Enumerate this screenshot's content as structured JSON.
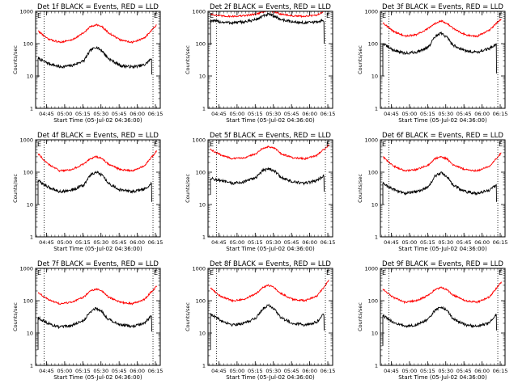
{
  "figure": {
    "x_axis_label": "Start Time (05-Jul-02 04:36:00)",
    "y_axis_label": "Counts/sec",
    "x_tick_labels": [
      "04:45",
      "05:00",
      "05:15",
      "05:30",
      "05:45",
      "06:00",
      "06:15"
    ],
    "y_tick_labels": [
      "1",
      "10",
      "100",
      "1000"
    ],
    "marker_left": "E",
    "marker_right": "E",
    "colors": {
      "events": "#000000",
      "lld": "#ff0000",
      "axes": "#000000",
      "background": "#ffffff"
    }
  },
  "chart_data": [
    {
      "type": "line",
      "title": "Det 1f BLACK = Events, RED = LLD",
      "xlabel": "Start Time (05-Jul-02 04:36:00)",
      "ylabel": "Counts/sec",
      "x_unit": "minutes after 04:36",
      "xlim": [
        0,
        103
      ],
      "ylim": [
        1,
        1000
      ],
      "yscale": "log",
      "vlines": [
        7,
        97
      ],
      "series": [
        {
          "name": "Events",
          "color": "#000000",
          "start_drop": 9,
          "end_drop": 11,
          "x": [
            2,
            10,
            20,
            30,
            40,
            45,
            50,
            55,
            60,
            70,
            80,
            90,
            96
          ],
          "y": [
            35,
            25,
            19,
            21,
            30,
            60,
            80,
            60,
            35,
            21,
            19,
            22,
            35
          ]
        },
        {
          "name": "LLD",
          "color": "#ff0000",
          "x": [
            2,
            10,
            20,
            30,
            40,
            45,
            50,
            55,
            60,
            70,
            80,
            90,
            100
          ],
          "y": [
            250,
            140,
            110,
            130,
            220,
            330,
            390,
            330,
            220,
            130,
            110,
            150,
            380
          ]
        }
      ]
    },
    {
      "type": "line",
      "title": "Det 2f BLACK = Events, RED = LLD",
      "xlabel": "Start Time (05-Jul-02 04:36:00)",
      "ylabel": "Counts/sec",
      "x_unit": "minutes after 04:36",
      "xlim": [
        0,
        103
      ],
      "ylim": [
        1,
        1000
      ],
      "yscale": "log",
      "vlines": [
        7,
        97
      ],
      "series": [
        {
          "name": "Events",
          "color": "#000000",
          "start_drop": 90,
          "end_drop": 100,
          "x": [
            2,
            10,
            20,
            30,
            40,
            45,
            50,
            55,
            60,
            70,
            80,
            90,
            96
          ],
          "y": [
            520,
            470,
            440,
            470,
            560,
            700,
            800,
            700,
            560,
            470,
            440,
            470,
            520
          ]
        },
        {
          "name": "LLD",
          "color": "#ff0000",
          "x": [
            2,
            10,
            20,
            30,
            40,
            45,
            50,
            55,
            60,
            70,
            80,
            90,
            100
          ],
          "y": [
            820,
            720,
            700,
            730,
            830,
            950,
            1050,
            950,
            830,
            720,
            700,
            760,
            1250
          ]
        }
      ]
    },
    {
      "type": "line",
      "title": "Det 3f BLACK = Events, RED = LLD",
      "xlabel": "Start Time (05-Jul-02 04:36:00)",
      "ylabel": "Counts/sec",
      "x_unit": "minutes after 04:36",
      "xlim": [
        0,
        103
      ],
      "ylim": [
        1,
        1000
      ],
      "yscale": "log",
      "vlines": [
        7,
        97
      ],
      "series": [
        {
          "name": "Events",
          "color": "#000000",
          "start_drop": 10,
          "end_drop": 12,
          "x": [
            2,
            10,
            20,
            30,
            40,
            45,
            50,
            55,
            60,
            70,
            80,
            90,
            96
          ],
          "y": [
            100,
            65,
            50,
            55,
            80,
            160,
            210,
            160,
            90,
            60,
            55,
            70,
            100
          ]
        },
        {
          "name": "LLD",
          "color": "#ff0000",
          "x": [
            2,
            10,
            20,
            30,
            40,
            45,
            50,
            55,
            60,
            70,
            80,
            90,
            100
          ],
          "y": [
            450,
            250,
            170,
            190,
            300,
            420,
            520,
            420,
            300,
            190,
            170,
            260,
            600
          ]
        }
      ]
    },
    {
      "type": "line",
      "title": "Det 4f BLACK = Events, RED = LLD",
      "xlabel": "Start Time (05-Jul-02 04:36:00)",
      "ylabel": "Counts/sec",
      "x_unit": "minutes after 04:36",
      "xlim": [
        0,
        103
      ],
      "ylim": [
        1,
        1000
      ],
      "yscale": "log",
      "vlines": [
        7,
        97
      ],
      "series": [
        {
          "name": "Events",
          "color": "#000000",
          "start_drop": 10,
          "end_drop": 12,
          "x": [
            2,
            10,
            20,
            30,
            40,
            45,
            50,
            55,
            60,
            70,
            80,
            90,
            96
          ],
          "y": [
            55,
            35,
            25,
            28,
            40,
            80,
            100,
            80,
            45,
            28,
            25,
            30,
            45
          ]
        },
        {
          "name": "LLD",
          "color": "#ff0000",
          "x": [
            2,
            10,
            20,
            30,
            40,
            45,
            50,
            55,
            60,
            70,
            80,
            90,
            100
          ],
          "y": [
            380,
            180,
            110,
            120,
            180,
            260,
            300,
            260,
            180,
            120,
            110,
            160,
            450
          ]
        }
      ]
    },
    {
      "type": "line",
      "title": "Det 5f BLACK = Events, RED = LLD",
      "xlabel": "Start Time (05-Jul-02 04:36:00)",
      "ylabel": "Counts/sec",
      "x_unit": "minutes after 04:36",
      "xlim": [
        0,
        103
      ],
      "ylim": [
        1,
        1000
      ],
      "yscale": "log",
      "vlines": [
        7,
        97
      ],
      "series": [
        {
          "name": "Events",
          "color": "#000000",
          "start_drop": 20,
          "end_drop": 25,
          "x": [
            2,
            10,
            20,
            30,
            40,
            45,
            50,
            55,
            60,
            70,
            80,
            90,
            96
          ],
          "y": [
            65,
            55,
            45,
            50,
            70,
            110,
            130,
            110,
            70,
            50,
            45,
            55,
            80
          ]
        },
        {
          "name": "LLD",
          "color": "#ff0000",
          "x": [
            2,
            10,
            20,
            30,
            40,
            45,
            50,
            55,
            60,
            70,
            80,
            90,
            100
          ],
          "y": [
            500,
            350,
            260,
            280,
            380,
            550,
            620,
            550,
            380,
            280,
            260,
            330,
            700
          ]
        }
      ]
    },
    {
      "type": "line",
      "title": "Det 6f BLACK = Events, RED = LLD",
      "xlabel": "Start Time (05-Jul-02 04:36:00)",
      "ylabel": "Counts/sec",
      "x_unit": "minutes after 04:36",
      "xlim": [
        0,
        103
      ],
      "ylim": [
        1,
        1000
      ],
      "yscale": "log",
      "vlines": [
        7,
        97
      ],
      "series": [
        {
          "name": "Events",
          "color": "#000000",
          "start_drop": 10,
          "end_drop": 12,
          "x": [
            2,
            10,
            20,
            30,
            40,
            45,
            50,
            55,
            60,
            70,
            80,
            90,
            96
          ],
          "y": [
            45,
            30,
            22,
            25,
            35,
            75,
            95,
            75,
            40,
            25,
            22,
            28,
            40
          ]
        },
        {
          "name": "LLD",
          "color": "#ff0000",
          "x": [
            2,
            10,
            20,
            30,
            40,
            45,
            50,
            55,
            60,
            70,
            80,
            90,
            100
          ],
          "y": [
            300,
            160,
            110,
            120,
            170,
            260,
            300,
            260,
            170,
            120,
            110,
            150,
            400
          ]
        }
      ]
    },
    {
      "type": "line",
      "title": "Det 7f BLACK = Events, RED = LLD",
      "xlabel": "Start Time (05-Jul-02 04:36:00)",
      "ylabel": "Counts/sec",
      "x_unit": "minutes after 04:36",
      "xlim": [
        0,
        103
      ],
      "ylim": [
        1,
        1000
      ],
      "yscale": "log",
      "vlines": [
        7,
        97
      ],
      "series": [
        {
          "name": "Events",
          "color": "#000000",
          "start_drop": 3,
          "end_drop": 11,
          "x": [
            2,
            10,
            20,
            30,
            40,
            45,
            50,
            55,
            60,
            70,
            80,
            90,
            96
          ],
          "y": [
            30,
            20,
            15,
            17,
            25,
            45,
            60,
            45,
            27,
            18,
            16,
            20,
            35
          ]
        },
        {
          "name": "LLD",
          "color": "#ff0000",
          "x": [
            2,
            10,
            20,
            30,
            40,
            45,
            50,
            55,
            60,
            70,
            80,
            90,
            100
          ],
          "y": [
            180,
            110,
            80,
            90,
            130,
            200,
            230,
            200,
            130,
            90,
            80,
            110,
            280
          ]
        }
      ]
    },
    {
      "type": "line",
      "title": "Det 8f BLACK = Events, RED = LLD",
      "xlabel": "Start Time (05-Jul-02 04:36:00)",
      "ylabel": "Counts/sec",
      "x_unit": "minutes after 04:36",
      "xlim": [
        0,
        103
      ],
      "ylim": [
        1,
        1000
      ],
      "yscale": "log",
      "vlines": [
        7,
        97
      ],
      "series": [
        {
          "name": "Events",
          "color": "#000000",
          "start_drop": 3,
          "end_drop": 12,
          "x": [
            2,
            10,
            20,
            30,
            40,
            45,
            50,
            55,
            60,
            70,
            80,
            90,
            96
          ],
          "y": [
            40,
            25,
            18,
            20,
            30,
            55,
            75,
            55,
            30,
            20,
            18,
            22,
            40
          ]
        },
        {
          "name": "LLD",
          "color": "#ff0000",
          "x": [
            2,
            10,
            20,
            30,
            40,
            45,
            50,
            55,
            60,
            70,
            80,
            90,
            100
          ],
          "y": [
            250,
            140,
            100,
            110,
            170,
            250,
            300,
            250,
            170,
            110,
            100,
            140,
            420
          ]
        }
      ]
    },
    {
      "type": "line",
      "title": "Det 9f BLACK = Events, RED = LLD",
      "xlabel": "Start Time (05-Jul-02 04:36:00)",
      "ylabel": "Counts/sec",
      "x_unit": "minutes after 04:36",
      "xlim": [
        0,
        103
      ],
      "ylim": [
        1,
        1000
      ],
      "yscale": "log",
      "vlines": [
        7,
        97
      ],
      "series": [
        {
          "name": "Events",
          "color": "#000000",
          "start_drop": 4,
          "end_drop": 12,
          "x": [
            2,
            10,
            20,
            30,
            40,
            45,
            50,
            55,
            60,
            70,
            80,
            90,
            96
          ],
          "y": [
            35,
            22,
            16,
            18,
            27,
            50,
            65,
            50,
            28,
            18,
            16,
            20,
            38
          ]
        },
        {
          "name": "LLD",
          "color": "#ff0000",
          "x": [
            2,
            10,
            20,
            30,
            40,
            45,
            50,
            55,
            60,
            70,
            80,
            90,
            100
          ],
          "y": [
            230,
            130,
            90,
            100,
            150,
            220,
            260,
            220,
            150,
            100,
            90,
            130,
            380
          ]
        }
      ]
    }
  ]
}
